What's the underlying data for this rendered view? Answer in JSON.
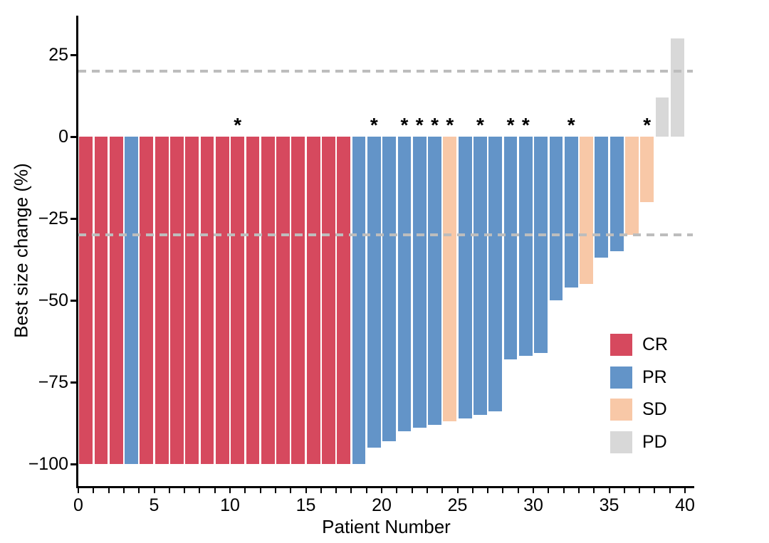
{
  "figure": {
    "title": "",
    "x_axis": {
      "title": "Patient Number",
      "major_ticks": [
        0,
        5,
        10,
        15,
        20,
        25,
        30,
        35,
        40
      ],
      "major_tick_labels": [
        "0",
        "5",
        "10",
        "15",
        "20",
        "25",
        "30",
        "35",
        "40"
      ],
      "minor_tick_step": 1,
      "range": [
        0,
        40.6
      ]
    },
    "y_axis": {
      "title": "Best size change (%)",
      "ticks": [
        25,
        0,
        -25,
        -50,
        -75,
        -100
      ],
      "tick_labels": [
        "25",
        "0",
        "−25",
        "−50",
        "−75",
        "−100"
      ],
      "range": [
        -107,
        37
      ]
    },
    "legend": {
      "position": "inside-right",
      "items": [
        {
          "label": "CR",
          "color": "#D6495E"
        },
        {
          "label": "PR",
          "color": "#6394C8"
        },
        {
          "label": "SD",
          "color": "#F8C8A7"
        },
        {
          "label": "PD",
          "color": "#D8D8D8"
        }
      ]
    },
    "colors": {
      "CR": "#D6495E",
      "PR": "#6394C8",
      "SD": "#F8C8A7",
      "PD": "#D8D8D8",
      "reference_line": "#BDBDBD",
      "axis": "#000000",
      "text": "#000000",
      "background": "#FFFFFF"
    },
    "annotation_symbol": "*"
  },
  "chart_data": {
    "type": "bar",
    "subtype": "waterfall-best-response",
    "title": "",
    "xlabel": "Patient Number",
    "ylabel": "Best size change (%)",
    "xlim": [
      0,
      40.6
    ],
    "ylim": [
      -107,
      37
    ],
    "grid": false,
    "legend_position": "inside-right",
    "x": [
      1,
      2,
      3,
      4,
      5,
      6,
      7,
      8,
      9,
      10,
      11,
      12,
      13,
      14,
      15,
      16,
      17,
      18,
      19,
      20,
      21,
      22,
      23,
      24,
      25,
      26,
      27,
      28,
      29,
      30,
      31,
      32,
      33,
      34,
      35,
      36,
      37,
      38,
      39,
      40
    ],
    "values": [
      -100,
      -100,
      -100,
      -100,
      -100,
      -100,
      -100,
      -100,
      -100,
      -100,
      -100,
      -100,
      -100,
      -100,
      -100,
      -100,
      -100,
      -100,
      -100,
      -95,
      -93,
      -90,
      -89,
      -88,
      -87,
      -86,
      -85,
      -84,
      -68,
      -67,
      -66,
      -50,
      -46,
      -45,
      -37,
      -35,
      -30,
      -20,
      12,
      30
    ],
    "response": [
      "CR",
      "CR",
      "CR",
      "PR",
      "CR",
      "CR",
      "CR",
      "CR",
      "CR",
      "CR",
      "CR",
      "CR",
      "CR",
      "CR",
      "CR",
      "CR",
      "CR",
      "CR",
      "PR",
      "PR",
      "PR",
      "PR",
      "PR",
      "PR",
      "SD",
      "PR",
      "PR",
      "PR",
      "PR",
      "PR",
      "PR",
      "PR",
      "PR",
      "SD",
      "PR",
      "PR",
      "SD",
      "SD",
      "PD",
      "PD"
    ],
    "starred_patients": [
      11,
      20,
      22,
      23,
      24,
      25,
      27,
      29,
      30,
      33,
      38
    ],
    "reference_lines_y": [
      20,
      -30
    ]
  }
}
